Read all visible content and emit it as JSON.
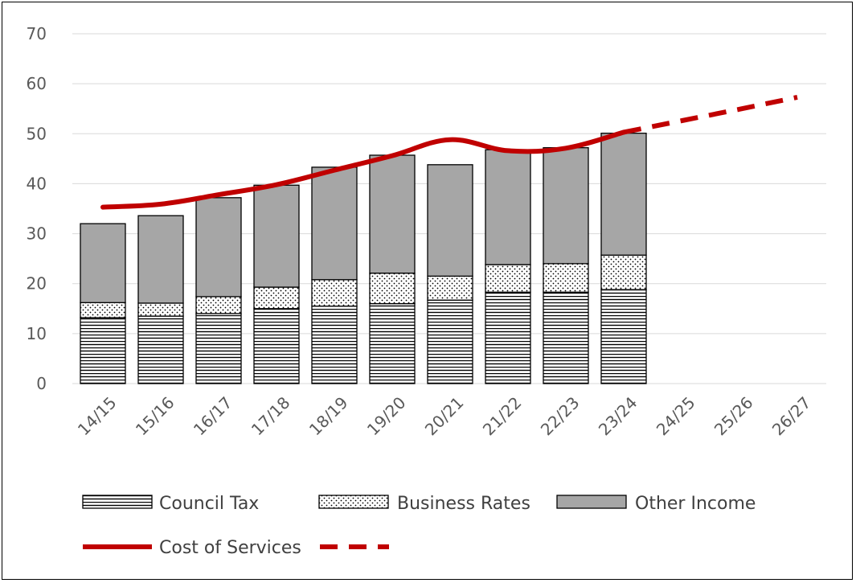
{
  "chart_data": {
    "type": "bar",
    "stacked": true,
    "categories": [
      "14/15",
      "15/16",
      "16/17",
      "17/18",
      "18/19",
      "19/20",
      "20/21",
      "21/22",
      "22/23",
      "23/24",
      "24/25",
      "25/26",
      "26/27"
    ],
    "ylim": [
      0,
      70
    ],
    "yticks": [
      "0",
      "10",
      "20",
      "30",
      "40",
      "50",
      "60",
      "70"
    ],
    "grid": true,
    "legend_placement": "bottom",
    "series": [
      {
        "name": "Council Tax",
        "kind": "bar",
        "pattern": "horizontal-lines",
        "color": "#000000",
        "values": [
          13.2,
          13.5,
          14.0,
          15.0,
          15.5,
          16.0,
          16.7,
          18.3,
          18.3,
          18.8,
          null,
          null,
          null
        ]
      },
      {
        "name": "Business Rates",
        "kind": "bar",
        "pattern": "dots",
        "color": "#000000",
        "values": [
          3.0,
          2.6,
          3.4,
          4.3,
          5.3,
          6.1,
          4.8,
          5.5,
          5.7,
          6.9,
          null,
          null,
          null
        ]
      },
      {
        "name": "Other Income",
        "kind": "bar",
        "pattern": "solid",
        "color": "#a6a6a6",
        "values": [
          15.8,
          17.5,
          19.8,
          20.4,
          22.5,
          23.6,
          22.3,
          23.0,
          23.2,
          24.4,
          null,
          null,
          null
        ]
      },
      {
        "name": "Cost of Services",
        "kind": "line",
        "color": "#c00000",
        "values": [
          35.3,
          35.9,
          37.8,
          39.8,
          42.7,
          45.6,
          48.8,
          46.6,
          47.1,
          50.3,
          null,
          null,
          null
        ],
        "projection_values": [
          null,
          null,
          null,
          null,
          null,
          null,
          null,
          null,
          null,
          50.3,
          52.6,
          54.9,
          57.3
        ]
      }
    ]
  }
}
